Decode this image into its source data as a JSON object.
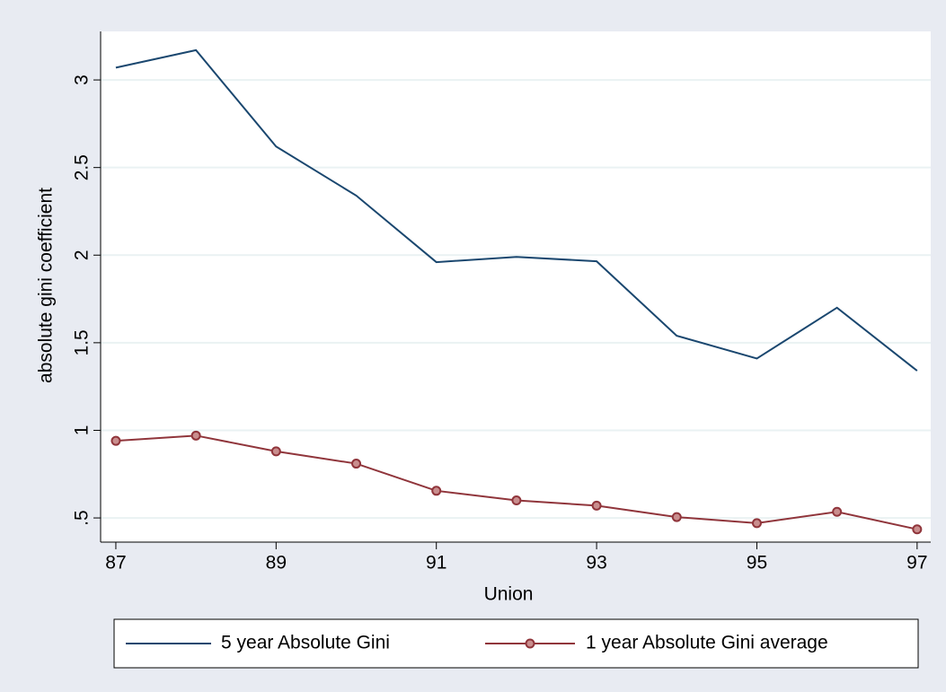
{
  "chart_data": {
    "type": "line",
    "x": [
      87,
      88,
      89,
      90,
      91,
      92,
      93,
      94,
      95,
      96,
      97
    ],
    "series": [
      {
        "name": "5 year Absolute Gini",
        "color": "#1a476f",
        "values": [
          3.07,
          3.17,
          2.62,
          2.34,
          1.96,
          1.99,
          1.965,
          1.54,
          1.41,
          1.7,
          1.34
        ]
      },
      {
        "name": "1 year Absolute Gini average",
        "color": "#90353b",
        "marker": "circle",
        "values": [
          0.94,
          0.97,
          0.88,
          0.81,
          0.655,
          0.6,
          0.57,
          0.505,
          0.47,
          0.535,
          0.435
        ]
      }
    ],
    "x_label": "Union",
    "y_label": "absolute gini coefficient",
    "xlim": [
      86.81,
      97.17
    ],
    "xticks": [
      87,
      89,
      91,
      93,
      95,
      97
    ],
    "ylim": [
      0.362,
      3.277
    ],
    "yticks": [
      {
        "value": 0.5,
        "label": ".5"
      },
      1,
      1.5,
      2,
      2.5,
      3
    ],
    "grid": true,
    "legend": "bottom"
  }
}
